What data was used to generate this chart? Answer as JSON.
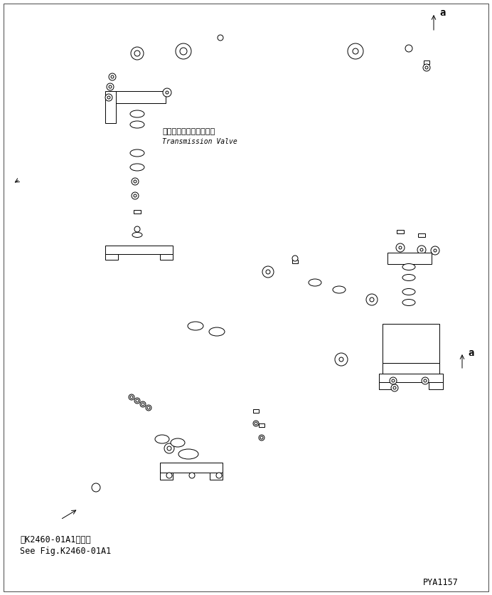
{
  "background_color": "#ffffff",
  "line_color": "#000000",
  "fig_width": 6.92,
  "fig_height": 8.36,
  "dpi": 100,
  "title_jp": "トランスミションバルブ",
  "title_en": "Transmission Valve",
  "bottom_text_jp": "第K2460-01A1図参照",
  "bottom_text_en": "See Fig.K2460-01A1",
  "part_number": "PYA1157",
  "arrow_a_label": "a"
}
